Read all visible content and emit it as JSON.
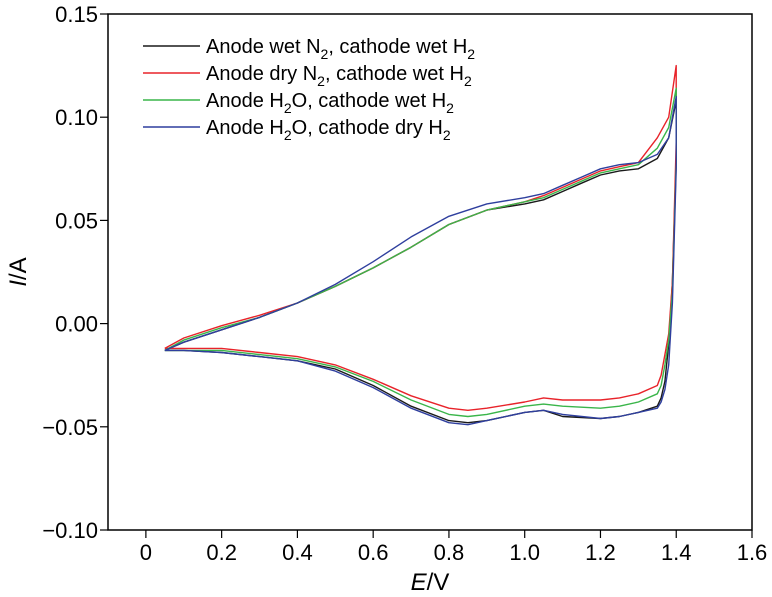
{
  "chart_data": {
    "type": "line",
    "title": "",
    "xlabel": {
      "var": "E",
      "unit": "/V"
    },
    "ylabel": {
      "var": "I",
      "unit": "/A"
    },
    "xlim": [
      -0.1,
      1.6
    ],
    "ylim": [
      -0.1,
      0.15
    ],
    "xticks": [
      0,
      0.2,
      0.4,
      0.6,
      0.8,
      1.0,
      1.2,
      1.4,
      1.6
    ],
    "xtick_labels": [
      "0",
      "0.2",
      "0.4",
      "0.6",
      "0.8",
      "1.0",
      "1.2",
      "1.4",
      "1.6"
    ],
    "yticks": [
      -0.1,
      -0.05,
      0.0,
      0.05,
      0.1,
      0.15
    ],
    "ytick_labels": [
      "−0.10",
      "−0.05",
      "0.00",
      "0.05",
      "0.10",
      "0.15"
    ],
    "legend_position": "top-left",
    "series": [
      {
        "name": "Anode wet N2, cathode wet H2",
        "legend": {
          "pre": "Anode wet N",
          "sub1": "2",
          "mid": ", cathode wet H",
          "sub2": "2"
        },
        "color": "#1a1a1a",
        "x": [
          0.05,
          0.1,
          0.2,
          0.3,
          0.4,
          0.5,
          0.6,
          0.7,
          0.8,
          0.9,
          1.0,
          1.05,
          1.1,
          1.15,
          1.2,
          1.25,
          1.3,
          1.35,
          1.38,
          1.4,
          1.4,
          1.39,
          1.38,
          1.37,
          1.36,
          1.35,
          1.3,
          1.25,
          1.2,
          1.1,
          1.05,
          1.0,
          0.9,
          0.85,
          0.8,
          0.7,
          0.6,
          0.5,
          0.4,
          0.3,
          0.2,
          0.1,
          0.05
        ],
        "y": [
          -0.013,
          -0.009,
          -0.003,
          0.003,
          0.01,
          0.018,
          0.027,
          0.037,
          0.048,
          0.055,
          0.058,
          0.06,
          0.064,
          0.068,
          0.072,
          0.074,
          0.075,
          0.08,
          0.09,
          0.108,
          0.08,
          0.02,
          -0.01,
          -0.028,
          -0.036,
          -0.04,
          -0.043,
          -0.045,
          -0.046,
          -0.045,
          -0.042,
          -0.043,
          -0.047,
          -0.048,
          -0.047,
          -0.04,
          -0.03,
          -0.022,
          -0.018,
          -0.016,
          -0.014,
          -0.013,
          -0.013
        ]
      },
      {
        "name": "Anode dry N2, cathode wet H2",
        "legend": {
          "pre": "Anode dry N",
          "sub1": "2",
          "mid": ", cathode wet H",
          "sub2": "2"
        },
        "color": "#e8232a",
        "x": [
          0.05,
          0.1,
          0.2,
          0.3,
          0.4,
          0.5,
          0.6,
          0.7,
          0.8,
          0.9,
          1.0,
          1.05,
          1.1,
          1.15,
          1.2,
          1.25,
          1.3,
          1.35,
          1.38,
          1.4,
          1.4,
          1.39,
          1.38,
          1.37,
          1.36,
          1.35,
          1.3,
          1.25,
          1.2,
          1.1,
          1.05,
          1.0,
          0.9,
          0.85,
          0.8,
          0.7,
          0.6,
          0.5,
          0.4,
          0.3,
          0.2,
          0.1,
          0.05
        ],
        "y": [
          -0.012,
          -0.007,
          -0.001,
          0.004,
          0.01,
          0.018,
          0.027,
          0.037,
          0.048,
          0.055,
          0.059,
          0.062,
          0.066,
          0.07,
          0.074,
          0.076,
          0.078,
          0.09,
          0.1,
          0.125,
          0.088,
          0.02,
          -0.005,
          -0.015,
          -0.025,
          -0.03,
          -0.034,
          -0.036,
          -0.037,
          -0.037,
          -0.036,
          -0.038,
          -0.041,
          -0.042,
          -0.041,
          -0.035,
          -0.027,
          -0.02,
          -0.016,
          -0.014,
          -0.012,
          -0.012,
          -0.012
        ]
      },
      {
        "name": "Anode H2O, cathode wet H2",
        "legend": {
          "pre": "Anode H",
          "sub1": "2",
          "mid": "O, cathode wet H",
          "sub2": "2"
        },
        "color": "#3ab54a",
        "x": [
          0.05,
          0.1,
          0.2,
          0.3,
          0.4,
          0.5,
          0.6,
          0.7,
          0.8,
          0.9,
          1.0,
          1.05,
          1.1,
          1.15,
          1.2,
          1.25,
          1.3,
          1.35,
          1.38,
          1.4,
          1.4,
          1.39,
          1.38,
          1.37,
          1.36,
          1.35,
          1.3,
          1.25,
          1.2,
          1.1,
          1.05,
          1.0,
          0.9,
          0.85,
          0.8,
          0.7,
          0.6,
          0.5,
          0.4,
          0.3,
          0.2,
          0.1,
          0.05
        ],
        "y": [
          -0.013,
          -0.008,
          -0.002,
          0.003,
          0.01,
          0.018,
          0.027,
          0.037,
          0.048,
          0.055,
          0.059,
          0.061,
          0.065,
          0.069,
          0.073,
          0.075,
          0.077,
          0.085,
          0.095,
          0.114,
          0.078,
          0.015,
          -0.008,
          -0.02,
          -0.03,
          -0.034,
          -0.038,
          -0.04,
          -0.041,
          -0.04,
          -0.039,
          -0.04,
          -0.044,
          -0.045,
          -0.044,
          -0.037,
          -0.028,
          -0.021,
          -0.017,
          -0.015,
          -0.013,
          -0.013,
          -0.013
        ]
      },
      {
        "name": "Anode H2O, cathode dry H2",
        "legend": {
          "pre": "Anode H",
          "sub1": "2",
          "mid": "O, cathode dry H",
          "sub2": "2"
        },
        "color": "#2f3f9e",
        "x": [
          0.05,
          0.1,
          0.2,
          0.3,
          0.4,
          0.5,
          0.6,
          0.7,
          0.8,
          0.9,
          1.0,
          1.05,
          1.1,
          1.15,
          1.2,
          1.25,
          1.3,
          1.35,
          1.38,
          1.4,
          1.4,
          1.39,
          1.38,
          1.37,
          1.36,
          1.35,
          1.3,
          1.25,
          1.2,
          1.1,
          1.05,
          1.0,
          0.9,
          0.85,
          0.8,
          0.7,
          0.6,
          0.5,
          0.4,
          0.3,
          0.2,
          0.1,
          0.05
        ],
        "y": [
          -0.013,
          -0.009,
          -0.003,
          0.003,
          0.01,
          0.019,
          0.03,
          0.042,
          0.052,
          0.058,
          0.061,
          0.063,
          0.067,
          0.071,
          0.075,
          0.077,
          0.078,
          0.082,
          0.09,
          0.11,
          0.075,
          0.01,
          -0.02,
          -0.032,
          -0.038,
          -0.041,
          -0.043,
          -0.045,
          -0.046,
          -0.044,
          -0.042,
          -0.043,
          -0.047,
          -0.049,
          -0.048,
          -0.041,
          -0.031,
          -0.023,
          -0.018,
          -0.016,
          -0.014,
          -0.013,
          -0.013
        ]
      }
    ]
  }
}
